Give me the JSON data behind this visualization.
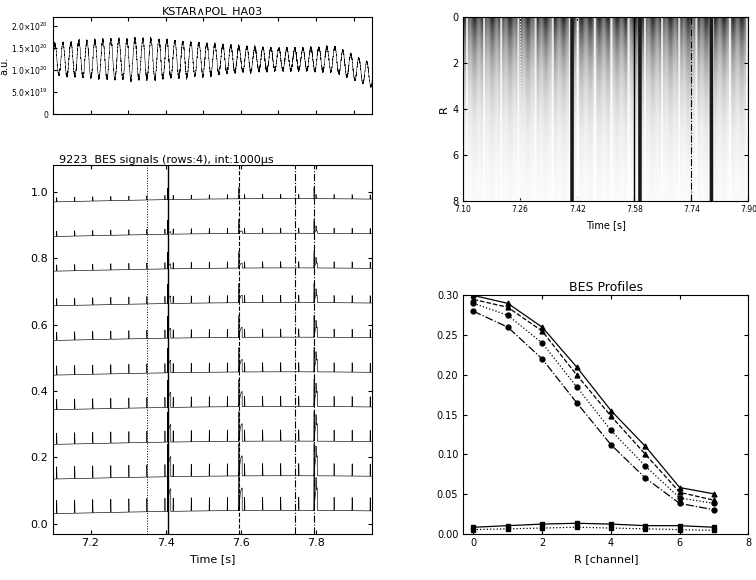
{
  "title_top": "KSTAR∧POL_HA03",
  "ylabel_top": "a.u.",
  "ytick_vals_top": [
    0,
    5e+19,
    1e+20,
    1.5e+20,
    2e+20
  ],
  "title_bes": "9223  BES signals (rows:4), int:1000μs",
  "xlabel_bes": "Time [s]",
  "xticks_bes": [
    7.2,
    7.4,
    7.6,
    7.8
  ],
  "num_bes_traces": 10,
  "ylabel_2d": "R",
  "yticks_2d": [
    0,
    2,
    4,
    6,
    8
  ],
  "xlabel_2d": "Time [s]",
  "xtick_labels_2d": [
    "7.10",
    "7.26",
    "7.42",
    "7.58",
    "7.74",
    "7.90"
  ],
  "xtick_vals_2d": [
    7.1,
    7.26,
    7.42,
    7.58,
    7.74,
    7.9
  ],
  "title_bes_profile": "BES Profiles",
  "xlabel_profile": "R [channel]",
  "xticks_profile": [
    0,
    2,
    4,
    6,
    8
  ],
  "ylim_profile": [
    0.0,
    0.3
  ],
  "yticks_profile": [
    0.0,
    0.05,
    0.1,
    0.15,
    0.2,
    0.25,
    0.3
  ],
  "vlines_bes_dotted": [
    7.35
  ],
  "vlines_bes_solid": [
    7.405
  ],
  "vlines_bes_dashed": [
    7.595
  ],
  "vlines_bes_dashdot": [
    7.745,
    7.795
  ],
  "vlines_2d_dotted": [
    7.26,
    7.58,
    7.74
  ],
  "vlines_2d_dashed": [
    7.42
  ],
  "vlines_2d_solid": [
    7.58
  ],
  "vlines_2d_dashdot": [
    7.74,
    7.9
  ],
  "profile_r": [
    0,
    1,
    2,
    3,
    4,
    5,
    6,
    7
  ],
  "profile_curves": [
    {
      "style": "solid",
      "marker": "^",
      "data": [
        0.3,
        0.29,
        0.26,
        0.21,
        0.155,
        0.11,
        0.058,
        0.05
      ]
    },
    {
      "style": "dashed",
      "marker": "^",
      "data": [
        0.295,
        0.285,
        0.255,
        0.2,
        0.148,
        0.1,
        0.052,
        0.042
      ]
    },
    {
      "style": "dotted",
      "marker": "o",
      "data": [
        0.29,
        0.275,
        0.24,
        0.185,
        0.13,
        0.085,
        0.045,
        0.038
      ]
    },
    {
      "style": "dashdot",
      "marker": "o",
      "data": [
        0.28,
        0.26,
        0.22,
        0.165,
        0.112,
        0.07,
        0.038,
        0.03
      ]
    },
    {
      "style": "solid",
      "marker": "s",
      "data": [
        0.008,
        0.01,
        0.012,
        0.013,
        0.012,
        0.01,
        0.01,
        0.008
      ]
    },
    {
      "style": "dotted",
      "marker": "s",
      "data": [
        0.005,
        0.006,
        0.007,
        0.008,
        0.007,
        0.006,
        0.005,
        0.004
      ]
    }
  ]
}
